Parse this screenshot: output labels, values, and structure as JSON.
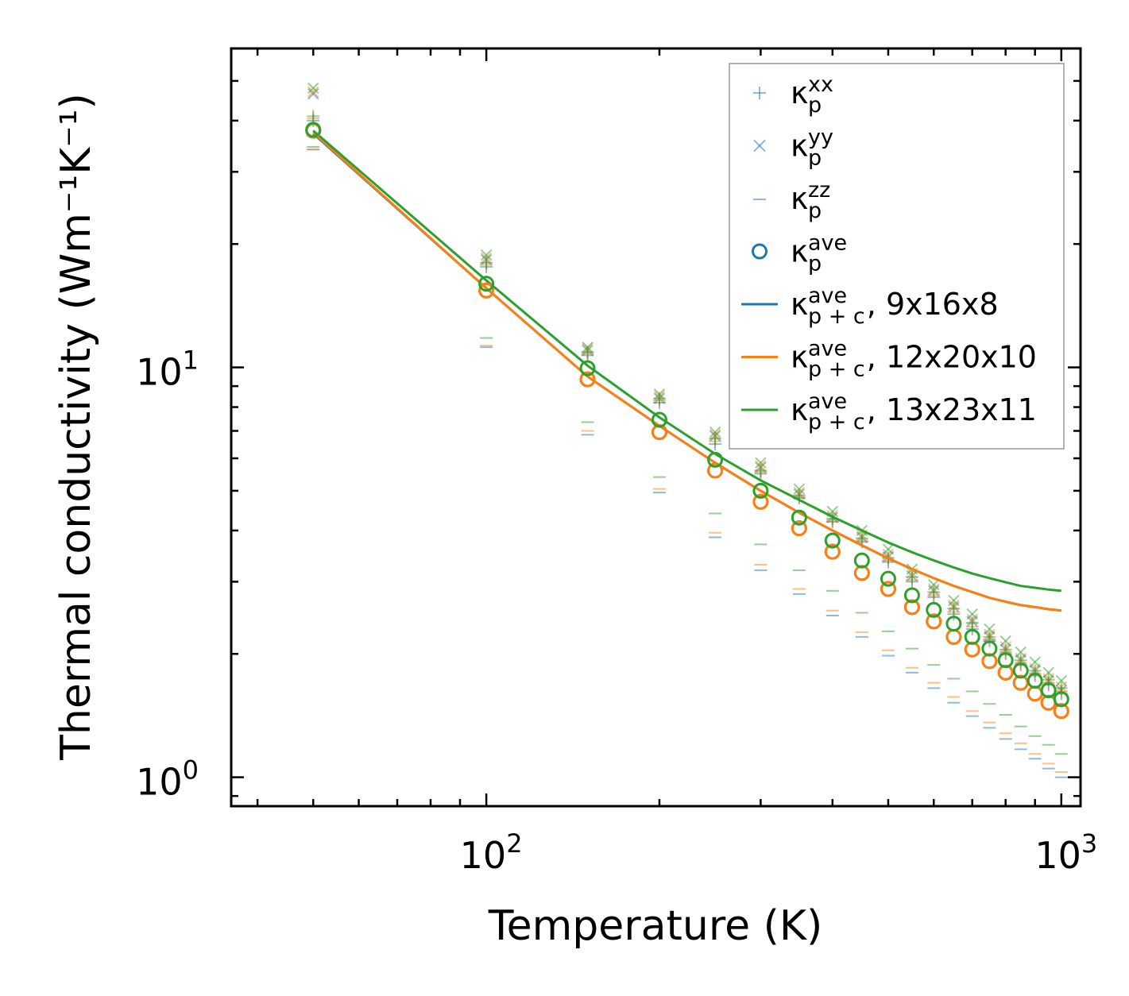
{
  "chart_data": {
    "type": "scatter",
    "title": "",
    "xlabel": "Temperature (K)",
    "ylabel": "Thermal conductivity (Wm⁻¹K⁻¹)",
    "xscale": "log",
    "yscale": "log",
    "xlim": [
      36,
      1080
    ],
    "ylim": [
      0.85,
      60
    ],
    "x_tick_labels": [
      {
        "base": "10",
        "exp": "2",
        "value": 100
      },
      {
        "base": "10",
        "exp": "3",
        "value": 1000
      }
    ],
    "y_tick_labels": [
      {
        "base": "10",
        "exp": "0",
        "value": 1
      },
      {
        "base": "10",
        "exp": "1",
        "value": 10
      }
    ],
    "grid": false,
    "legend_position": "top-right",
    "temperatures": [
      50,
      100,
      150,
      200,
      250,
      300,
      350,
      400,
      450,
      500,
      550,
      600,
      650,
      700,
      750,
      800,
      850,
      900,
      950,
      1000
    ],
    "colors": {
      "blue": "#1f77b4",
      "orange": "#ff7f0e",
      "green": "#2ca02c"
    },
    "legend": [
      {
        "id": "kxx",
        "label": "κ",
        "sub": "p",
        "sup": "xx",
        "suffix": "",
        "marker": "plus",
        "color": "#1f77b4"
      },
      {
        "id": "kyy",
        "label": "κ",
        "sub": "p",
        "sup": "yy",
        "suffix": "",
        "marker": "x",
        "color": "#1f77b4"
      },
      {
        "id": "kzz",
        "label": "κ",
        "sub": "p",
        "sup": "zz",
        "suffix": "",
        "marker": "hline",
        "color": "#1f77b4"
      },
      {
        "id": "kave",
        "label": "κ",
        "sub": "p",
        "sup": "ave",
        "suffix": "",
        "marker": "circle",
        "color": "#1f77b4"
      },
      {
        "id": "line1",
        "label": "κ",
        "sub": "p + c",
        "sup": "ave",
        "suffix": ", 9x16x8",
        "marker": "line",
        "color": "#1f77b4"
      },
      {
        "id": "line2",
        "label": "κ",
        "sub": "p + c",
        "sup": "ave",
        "suffix": ", 12x20x10",
        "marker": "line",
        "color": "#ff7f0e"
      },
      {
        "id": "line3",
        "label": "κ",
        "sub": "p + c",
        "sup": "ave",
        "suffix": ", 13x23x11",
        "marker": "line",
        "color": "#2ca02c"
      }
    ],
    "series": [
      {
        "name": "9x16x8",
        "color": "#1f77b4",
        "kxx": [
          40.0,
          17.6,
          10.7,
          8.2,
          6.5,
          5.5,
          4.8,
          4.2,
          3.75,
          3.35,
          3.0,
          2.75,
          2.5,
          2.3,
          2.15,
          2.0,
          1.88,
          1.77,
          1.68,
          1.6
        ],
        "kyy": [
          46.5,
          18.3,
          11.0,
          8.4,
          6.8,
          5.7,
          4.9,
          4.3,
          3.85,
          3.45,
          3.1,
          2.85,
          2.6,
          2.4,
          2.2,
          2.05,
          1.93,
          1.82,
          1.72,
          1.63
        ],
        "kzz": [
          34.0,
          11.2,
          6.85,
          4.95,
          3.85,
          3.2,
          2.8,
          2.48,
          2.2,
          1.98,
          1.8,
          1.65,
          1.52,
          1.41,
          1.32,
          1.24,
          1.17,
          1.11,
          1.05,
          1.0
        ],
        "kave": [
          37.8,
          15.4,
          9.35,
          6.95,
          5.6,
          4.7,
          4.05,
          3.55,
          3.15,
          2.88,
          2.6,
          2.4,
          2.2,
          2.05,
          1.92,
          1.8,
          1.7,
          1.6,
          1.52,
          1.45
        ],
        "total": [
          37.2,
          15.6,
          9.5,
          7.2,
          5.85,
          5.0,
          4.42,
          4.0,
          3.68,
          3.42,
          3.22,
          3.06,
          2.93,
          2.83,
          2.74,
          2.68,
          2.63,
          2.6,
          2.57,
          2.55
        ]
      },
      {
        "name": "12x20x10",
        "color": "#ff7f0e",
        "kxx": [
          40.5,
          17.8,
          10.8,
          8.3,
          6.6,
          5.55,
          4.82,
          4.22,
          3.78,
          3.38,
          3.03,
          2.78,
          2.53,
          2.33,
          2.17,
          2.02,
          1.9,
          1.79,
          1.7,
          1.62
        ],
        "kyy": [
          47.0,
          18.5,
          11.1,
          8.5,
          6.85,
          5.75,
          4.95,
          4.35,
          3.9,
          3.5,
          3.15,
          2.88,
          2.63,
          2.43,
          2.23,
          2.08,
          1.95,
          1.84,
          1.74,
          1.66
        ],
        "kzz": [
          34.0,
          11.3,
          7.0,
          5.05,
          3.95,
          3.3,
          2.88,
          2.55,
          2.26,
          2.04,
          1.85,
          1.7,
          1.57,
          1.45,
          1.36,
          1.28,
          1.21,
          1.14,
          1.08,
          1.03
        ],
        "kave": [
          37.8,
          15.4,
          9.35,
          6.95,
          5.6,
          4.7,
          4.05,
          3.55,
          3.15,
          2.88,
          2.6,
          2.4,
          2.2,
          2.05,
          1.92,
          1.8,
          1.7,
          1.6,
          1.52,
          1.45
        ],
        "total": [
          37.4,
          15.6,
          9.5,
          7.2,
          5.85,
          5.0,
          4.42,
          4.0,
          3.68,
          3.42,
          3.22,
          3.06,
          2.93,
          2.83,
          2.74,
          2.68,
          2.63,
          2.6,
          2.57,
          2.55
        ]
      },
      {
        "name": "13x23x11",
        "color": "#2ca02c",
        "kxx": [
          41.0,
          18.0,
          10.9,
          8.4,
          6.7,
          5.6,
          4.87,
          4.27,
          3.83,
          3.43,
          3.08,
          2.83,
          2.58,
          2.38,
          2.2,
          2.05,
          1.93,
          1.82,
          1.73,
          1.65
        ],
        "kyy": [
          48.0,
          18.8,
          11.2,
          8.6,
          6.95,
          5.85,
          5.05,
          4.45,
          4.0,
          3.6,
          3.22,
          2.95,
          2.7,
          2.5,
          2.3,
          2.15,
          2.02,
          1.91,
          1.8,
          1.72
        ],
        "kzz": [
          34.5,
          11.8,
          7.35,
          5.4,
          4.4,
          3.7,
          3.2,
          2.85,
          2.52,
          2.27,
          2.06,
          1.88,
          1.74,
          1.62,
          1.51,
          1.42,
          1.33,
          1.26,
          1.2,
          1.14
        ],
        "kave": [
          38.0,
          16.0,
          9.95,
          7.45,
          5.95,
          5.0,
          4.3,
          3.78,
          3.38,
          3.05,
          2.78,
          2.56,
          2.37,
          2.2,
          2.06,
          1.93,
          1.82,
          1.72,
          1.63,
          1.55
        ],
        "total": [
          37.8,
          16.3,
          10.1,
          7.55,
          6.15,
          5.3,
          4.75,
          4.32,
          4.0,
          3.74,
          3.54,
          3.38,
          3.25,
          3.14,
          3.06,
          2.99,
          2.93,
          2.9,
          2.87,
          2.85
        ]
      }
    ]
  }
}
